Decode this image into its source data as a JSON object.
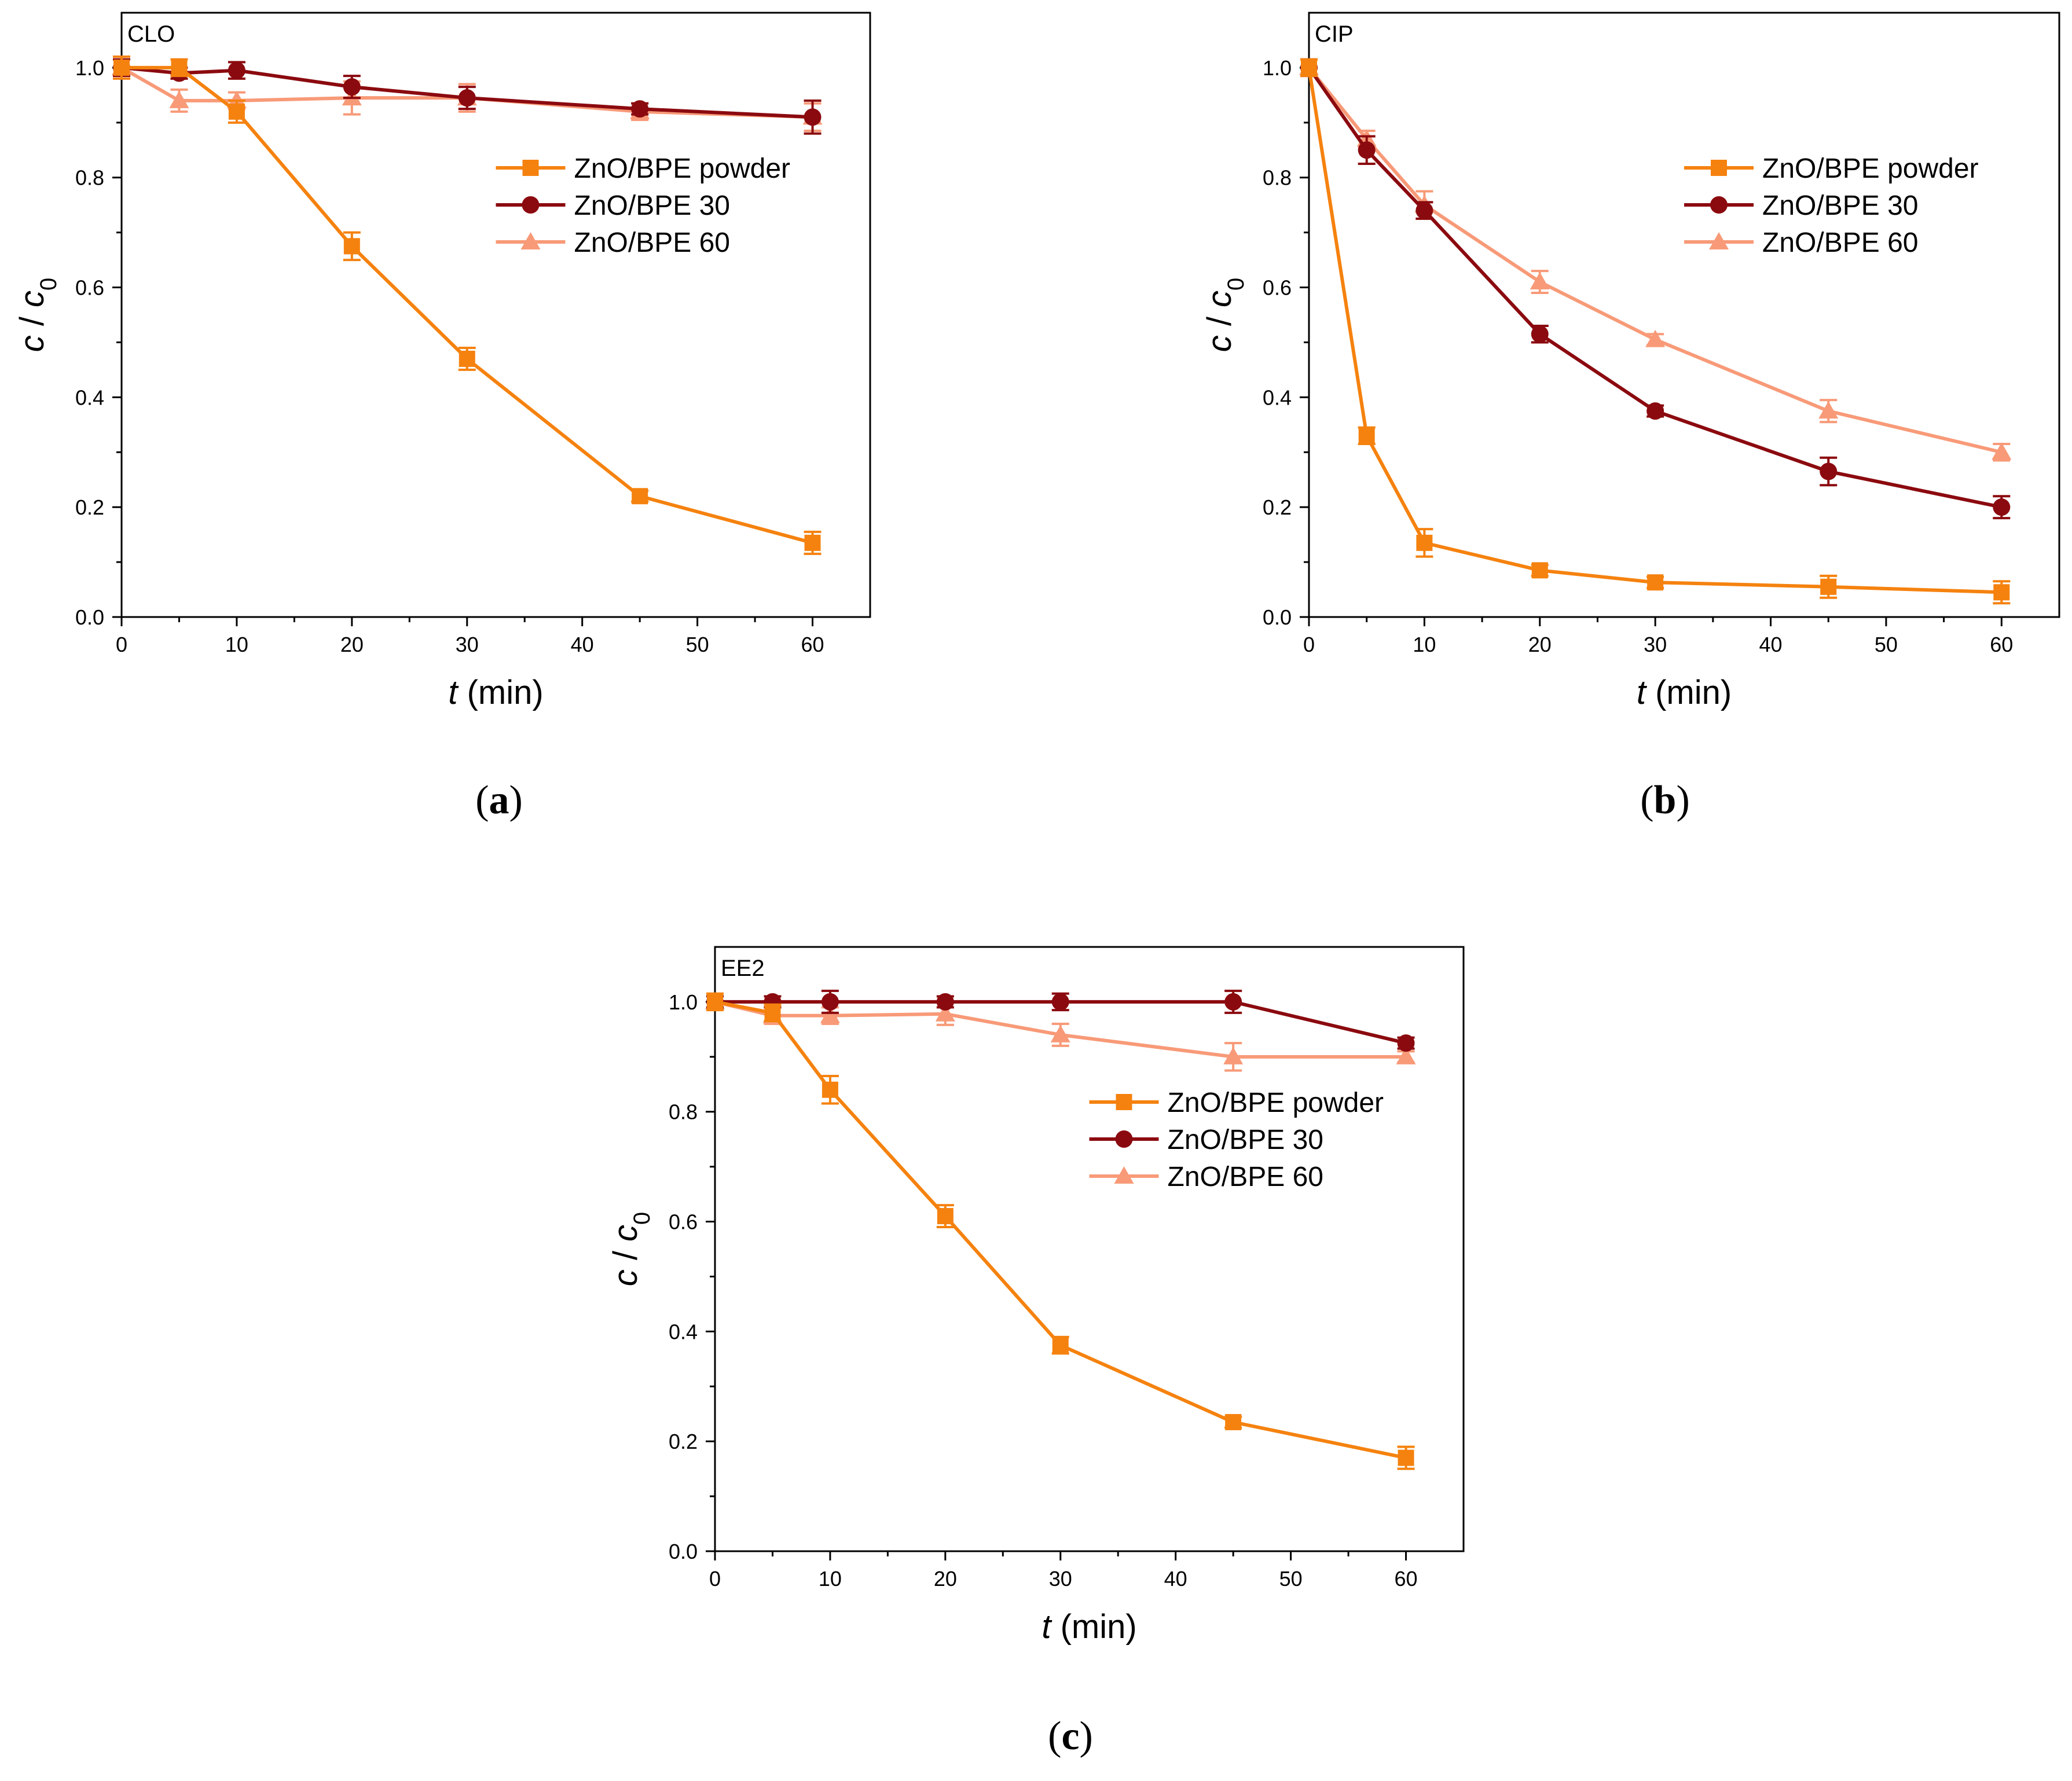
{
  "figure": {
    "colors": {
      "powder": "#F5820F",
      "bpe30": "#8B0A0F",
      "bpe60": "#F89A78",
      "axis": "#000000"
    },
    "legend": [
      "ZnO/BPE powder",
      "ZnO/BPE 30",
      "ZnO/BPE 60"
    ],
    "captions": {
      "a": {
        "open": "(",
        "letter": "a",
        "close": ")"
      },
      "b": {
        "open": "(",
        "letter": "b",
        "close": ")"
      },
      "c": {
        "open": "(",
        "letter": "c",
        "close": ")"
      }
    }
  },
  "chart_data": [
    {
      "type": "line",
      "panel": "a",
      "inset_label": "CLO",
      "xlabel": {
        "var": "t",
        "unit": " (min)"
      },
      "ylabel": {
        "c": "c",
        "slash": " / ",
        "c0": "c",
        "sub": "0"
      },
      "xlim": [
        0,
        65
      ],
      "ylim": [
        0,
        1.1
      ],
      "xticks": [
        0,
        10,
        20,
        30,
        40,
        50,
        60
      ],
      "yticks": [
        0.0,
        0.2,
        0.4,
        0.6,
        0.8,
        1.0
      ],
      "xtick_labels": [
        "0",
        "10",
        "20",
        "30",
        "40",
        "50",
        "60"
      ],
      "ytick_labels": [
        "0.0",
        "0.2",
        "0.4",
        "0.6",
        "0.8",
        "1.0"
      ],
      "x": [
        0,
        5,
        10,
        20,
        30,
        45,
        60
      ],
      "series": [
        {
          "name": "ZnO/BPE powder",
          "marker": "square",
          "values": [
            1.0,
            1.0,
            0.92,
            0.675,
            0.47,
            0.22,
            0.135
          ],
          "errors": [
            0.02,
            0.015,
            0.02,
            0.025,
            0.02,
            0.01,
            0.02
          ]
        },
        {
          "name": "ZnO/BPE 30",
          "marker": "circle",
          "values": [
            1.0,
            0.99,
            0.995,
            0.965,
            0.945,
            0.925,
            0.91
          ],
          "errors": [
            0.015,
            0.01,
            0.015,
            0.02,
            0.02,
            0.01,
            0.03
          ]
        },
        {
          "name": "ZnO/BPE 60",
          "marker": "triangle",
          "values": [
            1.0,
            0.94,
            0.94,
            0.945,
            0.945,
            0.92,
            0.91
          ],
          "errors": [
            0.015,
            0.02,
            0.015,
            0.03,
            0.025,
            0.015,
            0.025
          ]
        }
      ]
    },
    {
      "type": "line",
      "panel": "b",
      "inset_label": "CIP",
      "xlabel": {
        "var": "t",
        "unit": " (min)"
      },
      "ylabel": {
        "c": "c",
        "slash": " / ",
        "c0": "c",
        "sub": "0"
      },
      "xlim": [
        0,
        65
      ],
      "ylim": [
        0,
        1.1
      ],
      "xticks": [
        0,
        10,
        20,
        30,
        40,
        50,
        60
      ],
      "yticks": [
        0.0,
        0.2,
        0.4,
        0.6,
        0.8,
        1.0
      ],
      "xtick_labels": [
        "0",
        "10",
        "20",
        "30",
        "40",
        "50",
        "60"
      ],
      "ytick_labels": [
        "0.0",
        "0.2",
        "0.4",
        "0.6",
        "0.8",
        "1.0"
      ],
      "x": [
        0,
        5,
        10,
        20,
        30,
        45,
        60
      ],
      "series": [
        {
          "name": "ZnO/BPE powder",
          "marker": "square",
          "values": [
            1.0,
            0.33,
            0.135,
            0.085,
            0.063,
            0.055,
            0.045
          ],
          "errors": [
            0.015,
            0.015,
            0.025,
            0.01,
            0.01,
            0.02,
            0.02
          ]
        },
        {
          "name": "ZnO/BPE 30",
          "marker": "circle",
          "values": [
            1.0,
            0.85,
            0.74,
            0.515,
            0.375,
            0.265,
            0.2
          ],
          "errors": [
            0.015,
            0.025,
            0.015,
            0.015,
            0.01,
            0.025,
            0.02
          ]
        },
        {
          "name": "ZnO/BPE 60",
          "marker": "triangle",
          "values": [
            1.0,
            0.87,
            0.75,
            0.61,
            0.505,
            0.375,
            0.3
          ],
          "errors": [
            0.015,
            0.015,
            0.025,
            0.02,
            0.01,
            0.02,
            0.015
          ]
        }
      ]
    },
    {
      "type": "line",
      "panel": "c",
      "inset_label": "EE2",
      "xlabel": {
        "var": "t",
        "unit": " (min)"
      },
      "ylabel": {
        "c": "c",
        "slash": " / ",
        "c0": "c",
        "sub": "0"
      },
      "xlim": [
        0,
        65
      ],
      "ylim": [
        0,
        1.1
      ],
      "xticks": [
        0,
        10,
        20,
        30,
        40,
        50,
        60
      ],
      "yticks": [
        0.0,
        0.2,
        0.4,
        0.6,
        0.8,
        1.0
      ],
      "xtick_labels": [
        "0",
        "10",
        "20",
        "30",
        "40",
        "50",
        "60"
      ],
      "ytick_labels": [
        "0.0",
        "0.2",
        "0.4",
        "0.6",
        "0.8",
        "1.0"
      ],
      "x": [
        0,
        5,
        10,
        20,
        30,
        45,
        60
      ],
      "series": [
        {
          "name": "ZnO/BPE powder",
          "marker": "square",
          "values": [
            1.0,
            0.98,
            0.84,
            0.61,
            0.375,
            0.235,
            0.17
          ],
          "errors": [
            0.015,
            0.015,
            0.025,
            0.02,
            0.015,
            0.01,
            0.02
          ]
        },
        {
          "name": "ZnO/BPE 30",
          "marker": "circle",
          "values": [
            1.0,
            1.0,
            1.0,
            1.0,
            1.0,
            1.0,
            0.925
          ],
          "errors": [
            0.01,
            0.01,
            0.02,
            0.01,
            0.015,
            0.02,
            0.01
          ]
        },
        {
          "name": "ZnO/BPE 60",
          "marker": "triangle",
          "values": [
            1.0,
            0.975,
            0.975,
            0.978,
            0.94,
            0.9,
            0.9
          ],
          "errors": [
            0.01,
            0.015,
            0.015,
            0.02,
            0.02,
            0.025,
            0.01
          ]
        }
      ]
    }
  ]
}
